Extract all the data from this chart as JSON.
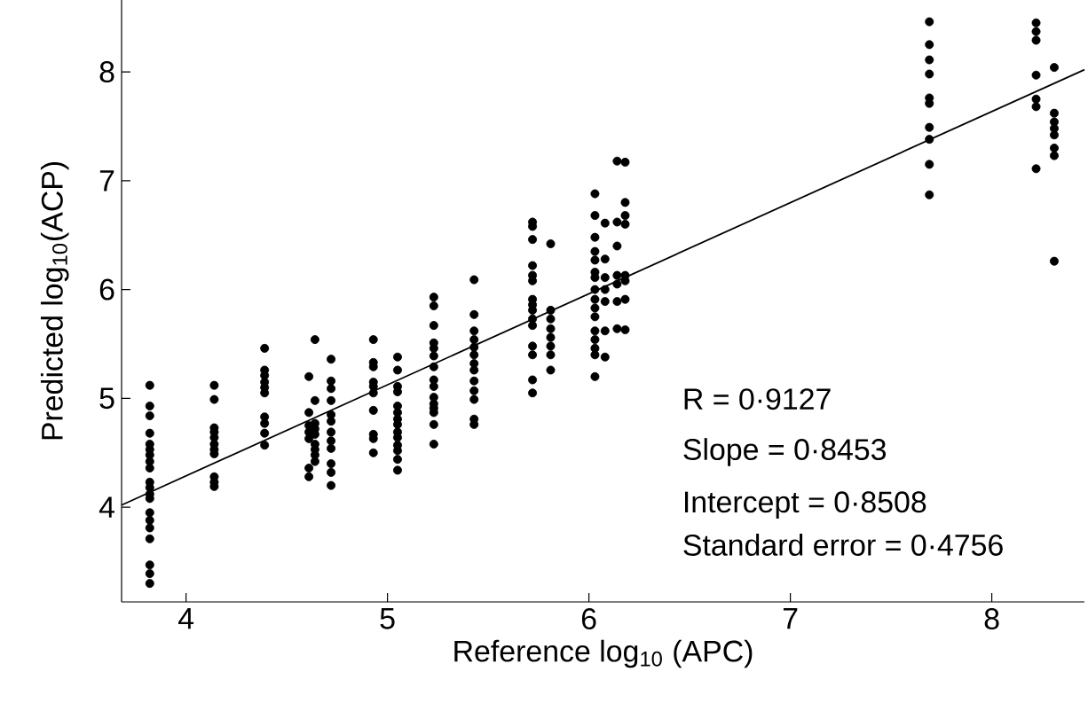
{
  "chart_data": {
    "type": "scatter",
    "xlabel": "Reference log$_{10}$ (APC)",
    "ylabel": "Predicted log$_{10}$(ACP)",
    "xlim": [
      3.68,
      8.46
    ],
    "ylim": [
      3.13,
      8.66
    ],
    "xticks": [
      4,
      5,
      6,
      7,
      8
    ],
    "yticks": [
      4,
      5,
      6,
      7,
      8
    ],
    "grid": false,
    "annotations": [
      "R = 0·9127",
      "Slope = 0·8453",
      "Intercept = 0·8508",
      "Standard error = 0·4756"
    ],
    "series": [
      {
        "type": "scatter",
        "marker": "circle",
        "color": "#000000",
        "x": [
          3.82,
          3.82,
          3.82,
          3.82,
          3.82,
          3.82,
          3.82,
          3.82,
          3.82,
          3.82,
          3.82,
          3.82,
          3.82,
          3.82,
          3.82,
          3.82,
          3.82,
          3.82,
          3.82,
          3.82,
          4.14,
          4.14,
          4.14,
          4.14,
          4.14,
          4.14,
          4.14,
          4.14,
          4.14,
          4.14,
          4.14,
          4.39,
          4.39,
          4.39,
          4.39,
          4.39,
          4.39,
          4.39,
          4.39,
          4.39,
          4.39,
          4.61,
          4.61,
          4.61,
          4.61,
          4.61,
          4.61,
          4.61,
          4.64,
          4.64,
          4.64,
          4.64,
          4.64,
          4.64,
          4.64,
          4.64,
          4.64,
          4.72,
          4.72,
          4.72,
          4.72,
          4.72,
          4.72,
          4.72,
          4.72,
          4.72,
          4.72,
          4.72,
          4.72,
          4.93,
          4.93,
          4.93,
          4.93,
          4.93,
          4.93,
          4.93,
          4.93,
          4.93,
          4.93,
          5.05,
          5.05,
          5.05,
          5.05,
          5.05,
          5.05,
          5.05,
          5.05,
          5.05,
          5.05,
          5.05,
          5.05,
          5.05,
          5.05,
          5.23,
          5.23,
          5.23,
          5.23,
          5.23,
          5.23,
          5.23,
          5.23,
          5.23,
          5.23,
          5.23,
          5.23,
          5.23,
          5.23,
          5.23,
          5.43,
          5.43,
          5.43,
          5.43,
          5.43,
          5.43,
          5.43,
          5.43,
          5.43,
          5.43,
          5.43,
          5.43,
          5.43,
          5.72,
          5.72,
          5.72,
          5.72,
          5.72,
          5.72,
          5.72,
          5.72,
          5.72,
          5.72,
          5.72,
          5.72,
          5.72,
          5.72,
          5.72,
          5.81,
          5.81,
          5.81,
          5.81,
          5.81,
          5.81,
          5.81,
          5.81,
          6.03,
          6.03,
          6.03,
          6.03,
          6.03,
          6.03,
          6.03,
          6.03,
          6.03,
          6.03,
          6.03,
          6.03,
          6.03,
          6.03,
          6.03,
          6.03,
          6.08,
          6.08,
          6.08,
          6.08,
          6.08,
          6.08,
          6.08,
          6.14,
          6.14,
          6.14,
          6.14,
          6.14,
          6.14,
          6.14,
          6.18,
          6.18,
          6.18,
          6.18,
          6.18,
          6.18,
          6.18,
          6.18,
          7.69,
          7.69,
          7.69,
          7.69,
          7.69,
          7.69,
          7.69,
          7.69,
          7.69,
          7.69,
          8.22,
          8.22,
          8.22,
          8.22,
          8.22,
          8.22,
          8.22,
          8.31,
          8.31,
          8.31,
          8.31,
          8.31,
          8.31,
          8.31,
          8.31
        ],
        "values": [
          5.12,
          4.93,
          4.84,
          4.68,
          4.58,
          4.53,
          4.48,
          4.42,
          4.36,
          4.23,
          4.18,
          4.12,
          4.08,
          3.95,
          3.88,
          3.81,
          3.71,
          3.47,
          3.39,
          3.3,
          5.12,
          4.99,
          4.73,
          4.69,
          4.64,
          4.58,
          4.53,
          4.49,
          4.28,
          4.23,
          4.19,
          5.46,
          5.26,
          5.21,
          5.15,
          5.1,
          5.05,
          4.83,
          4.77,
          4.68,
          4.57,
          5.2,
          4.87,
          4.75,
          4.69,
          4.63,
          4.36,
          4.28,
          5.54,
          4.98,
          4.77,
          4.72,
          4.67,
          4.58,
          4.53,
          4.48,
          4.42,
          5.36,
          5.16,
          5.09,
          4.98,
          4.85,
          4.79,
          4.69,
          4.61,
          4.54,
          4.4,
          4.32,
          4.2,
          5.54,
          5.33,
          5.29,
          5.15,
          5.11,
          5.05,
          4.89,
          4.67,
          4.63,
          4.5,
          5.38,
          5.26,
          5.11,
          5.06,
          4.93,
          4.87,
          4.81,
          4.76,
          4.69,
          4.64,
          4.57,
          4.52,
          4.44,
          4.34,
          5.93,
          5.85,
          5.67,
          5.51,
          5.46,
          5.39,
          5.29,
          5.17,
          5.11,
          5.01,
          4.95,
          4.91,
          4.87,
          4.76,
          4.58,
          6.09,
          5.77,
          5.62,
          5.54,
          5.47,
          5.4,
          5.32,
          5.26,
          5.16,
          5.07,
          4.99,
          4.81,
          4.76,
          6.62,
          6.58,
          6.46,
          6.22,
          6.13,
          6.08,
          5.91,
          5.86,
          5.81,
          5.73,
          5.67,
          5.48,
          5.4,
          5.17,
          5.05,
          6.42,
          5.81,
          5.73,
          5.64,
          5.56,
          5.48,
          5.4,
          5.26,
          6.88,
          6.68,
          6.48,
          6.35,
          6.27,
          6.16,
          6.11,
          6.0,
          5.91,
          5.83,
          5.75,
          5.62,
          5.54,
          5.46,
          5.4,
          5.2,
          6.61,
          6.28,
          6.11,
          6.0,
          5.89,
          5.62,
          5.38,
          7.18,
          6.62,
          6.4,
          6.13,
          6.05,
          5.89,
          5.64,
          7.17,
          6.8,
          6.68,
          6.6,
          6.13,
          6.08,
          5.91,
          5.63,
          8.46,
          8.25,
          8.11,
          7.98,
          7.76,
          7.71,
          7.49,
          7.38,
          7.15,
          6.87,
          8.45,
          8.37,
          8.29,
          7.97,
          7.75,
          7.68,
          7.11,
          8.04,
          7.62,
          7.54,
          7.48,
          7.42,
          7.3,
          7.23,
          6.26
        ]
      },
      {
        "type": "line",
        "color": "#000000",
        "x": [
          3.68,
          8.46
        ],
        "values": [
          4.02,
          8.02
        ]
      }
    ]
  }
}
